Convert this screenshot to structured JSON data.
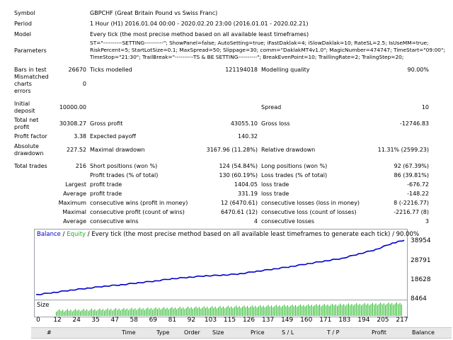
{
  "report": {
    "symbol_label": "Symbol",
    "symbol": "GBPCHF (Great Britain Pound vs Swiss Franc)",
    "period_label": "Period",
    "period": "1 Hour (H1) 2016.01.04 00:00 - 2020.02.20 23:00 (2016.01.01 - 2020.02.21)",
    "model_label": "Model",
    "model": "Every tick (the most precise method based on all available least timeframes)",
    "params_label": "Parameters",
    "params_lines": [
      "ST=\"----------SETTING----------\"; ShowPanel=false; AutoSetting=true; iFastDaklak=4; iSlowDaklak=10; RateSL=2.5; IsUseMM=true;",
      "RiskPercent=5; StartLotSize=0.1; MaxSpread=50; Slippage=30; comm=\"DaklakMT4v1.0\"; MagicNumber=474747; TimeStart=\"09:00\";",
      "TimeStop=\"21:30\"; TrailBreak=\"----------TS & BE SETTING----------\"; BreakEvenPoint=10; TraillingRate=2; TralingStep=20;"
    ],
    "bars_label": "Bars in test",
    "bars": "26670",
    "ticks_label": "Ticks modelled",
    "ticks": "121194018",
    "quality_label": "Modelling quality",
    "quality": "90.00%",
    "mismatch_label_1": "Mismatched",
    "mismatch_label_2": "charts",
    "mismatch_label_3": "errors",
    "mismatch": "0",
    "deposit_label_1": "Initial",
    "deposit_label_2": "deposit",
    "deposit": "10000.00",
    "spread_label": "Spread",
    "spread": "10",
    "net_label_1": "Total net",
    "net_label_2": "profit",
    "net": "30308.27",
    "gross_profit_label": "Gross profit",
    "gross_profit": "43055.10",
    "gross_loss_label": "Gross loss",
    "gross_loss": "-12746.83",
    "pf_label": "Profit factor",
    "pf": "3.38",
    "payoff_label": "Expected payoff",
    "payoff": "140.32",
    "absdd_label_1": "Absolute",
    "absdd_label_2": "drawdown",
    "absdd": "227.52",
    "maxdd_label": "Maximal drawdown",
    "maxdd": "3167.96 (11.28%)",
    "reldd_label": "Relative drawdown",
    "reldd": "11.31% (2599.23)",
    "trades_label": "Total trades",
    "trades": "216",
    "short_label": "Short positions (won %)",
    "short": "124 (54.84%)",
    "long_label": "Long positions (won %)",
    "long": "92 (67.39%)",
    "ptrades_label": "Profit trades (% of total)",
    "ptrades": "130 (60.19%)",
    "ltrades_label": "Loss trades (% of total)",
    "ltrades": "86 (39.81%)",
    "largest_label": "Largest",
    "lp_label": "profit trade",
    "lp": "1404.05",
    "ll_label": "loss trade",
    "ll": "-676.72",
    "average_label": "Average",
    "ap_label": "profit trade",
    "ap": "331.19",
    "al_label": "loss trade",
    "al": "-148.22",
    "maximum_label": "Maximum",
    "mcw_label": "consecutive wins (profit in money)",
    "mcw": "12 (6470.61)",
    "mcl_label": "consecutive losses (loss in money)",
    "mcl": "8 (-2216.77)",
    "maximal_label": "Maximal",
    "mcp_label": "consecutive profit (count of wins)",
    "mcp": "6470.61 (12)",
    "mcll_label": "consecutive loss (count of losses)",
    "mcll": "-2216.77 (8)",
    "average2_label": "Average",
    "acw_label": "consecutive wins",
    "acw": "4",
    "acl_label": "consecutive losses",
    "acl": "3"
  },
  "chart": {
    "title_balance": "Balance",
    "title_sep": " / ",
    "title_equity": "Equity",
    "title_rest": " / Every tick (the most precise method based on all available least timeframes to generate each tick) / 90.00%",
    "size_label": "Size",
    "y_ticks": [
      "38954",
      "28791",
      "18628",
      "8464"
    ],
    "x_ticks": [
      "0",
      "12",
      "24",
      "35",
      "47",
      "58",
      "69",
      "81",
      "92",
      "103",
      "115",
      "126",
      "137",
      "149",
      "160",
      "171",
      "183",
      "194",
      "205",
      "217"
    ],
    "colors": {
      "balance": "#0000c8",
      "equity": "#20b020",
      "bars": "#22b822"
    }
  },
  "chart_data": {
    "type": "line",
    "title": "Balance / Equity / Every tick (the most precise method based on all available least timeframes to generate each tick) / 90.00%",
    "xlabel": "",
    "ylabel": "",
    "xlim": [
      0,
      217
    ],
    "ylim": [
      8464,
      41500
    ],
    "x": [
      0,
      10,
      20,
      30,
      40,
      50,
      60,
      70,
      80,
      90,
      100,
      110,
      120,
      130,
      140,
      150,
      160,
      170,
      180,
      190,
      200,
      210,
      217
    ],
    "series": [
      {
        "name": "Balance",
        "values": [
          10000,
          11200,
          12500,
          13600,
          14700,
          15500,
          16600,
          17600,
          18900,
          19700,
          20500,
          20900,
          21600,
          23000,
          24300,
          25600,
          27200,
          28700,
          30100,
          32600,
          35000,
          38600,
          40308
        ]
      }
    ]
  },
  "grid": {
    "columns": [
      "#",
      "Time",
      "Type",
      "Order",
      "Size",
      "Price",
      "S / L",
      "T / P",
      "Profit",
      "Balance"
    ]
  }
}
